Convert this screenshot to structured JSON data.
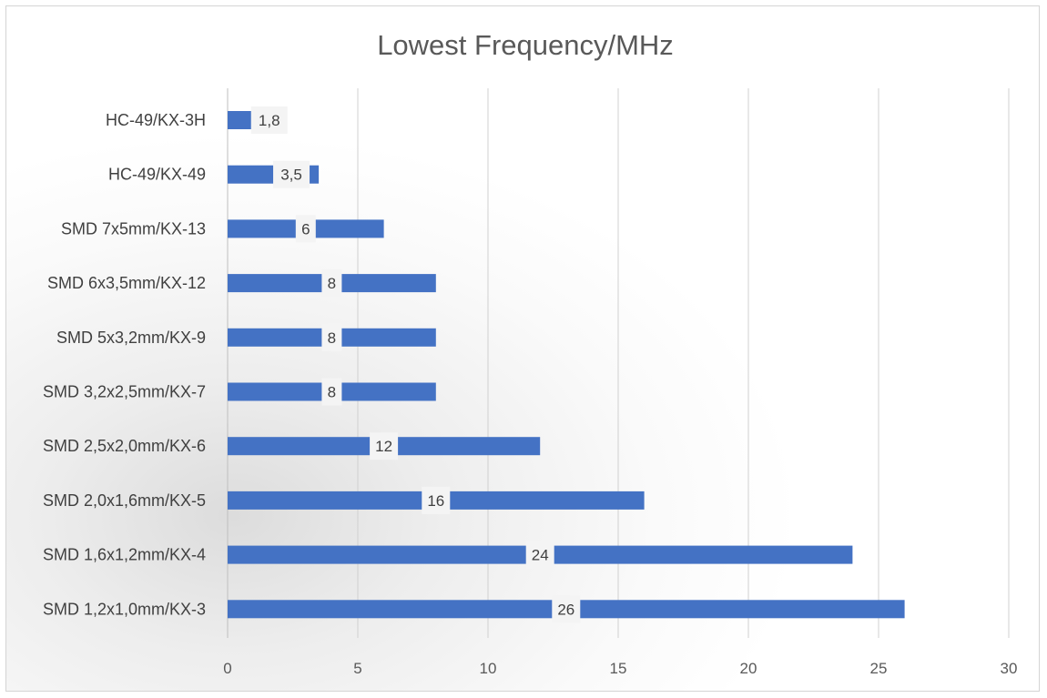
{
  "chart_data": {
    "type": "bar",
    "orientation": "horizontal",
    "title": "Lowest Frequency/MHz",
    "categories": [
      "HC-49/KX-3H",
      "HC-49/KX-49",
      "SMD 7x5mm/KX-13",
      "SMD 6x3,5mm/KX-12",
      "SMD 5x3,2mm/KX-9",
      "SMD 3,2x2,5mm/KX-7",
      "SMD 2,5x2,0mm/KX-6",
      "SMD 2,0x1,6mm/KX-5",
      "SMD 1,6x1,2mm/KX-4",
      "SMD 1,2x1,0mm/KX-3"
    ],
    "values": [
      1.8,
      3.5,
      6,
      8,
      8,
      8,
      12,
      16,
      24,
      26
    ],
    "data_labels": [
      "1,8",
      "3,5",
      "6",
      "8",
      "8",
      "8",
      "12",
      "16",
      "24",
      "26"
    ],
    "xlim": [
      0,
      30
    ],
    "x_ticks": [
      "0",
      "5",
      "10",
      "15",
      "20",
      "25",
      "30"
    ],
    "grid": "vertical",
    "legend": "none",
    "bar_color": "#4472c4"
  }
}
